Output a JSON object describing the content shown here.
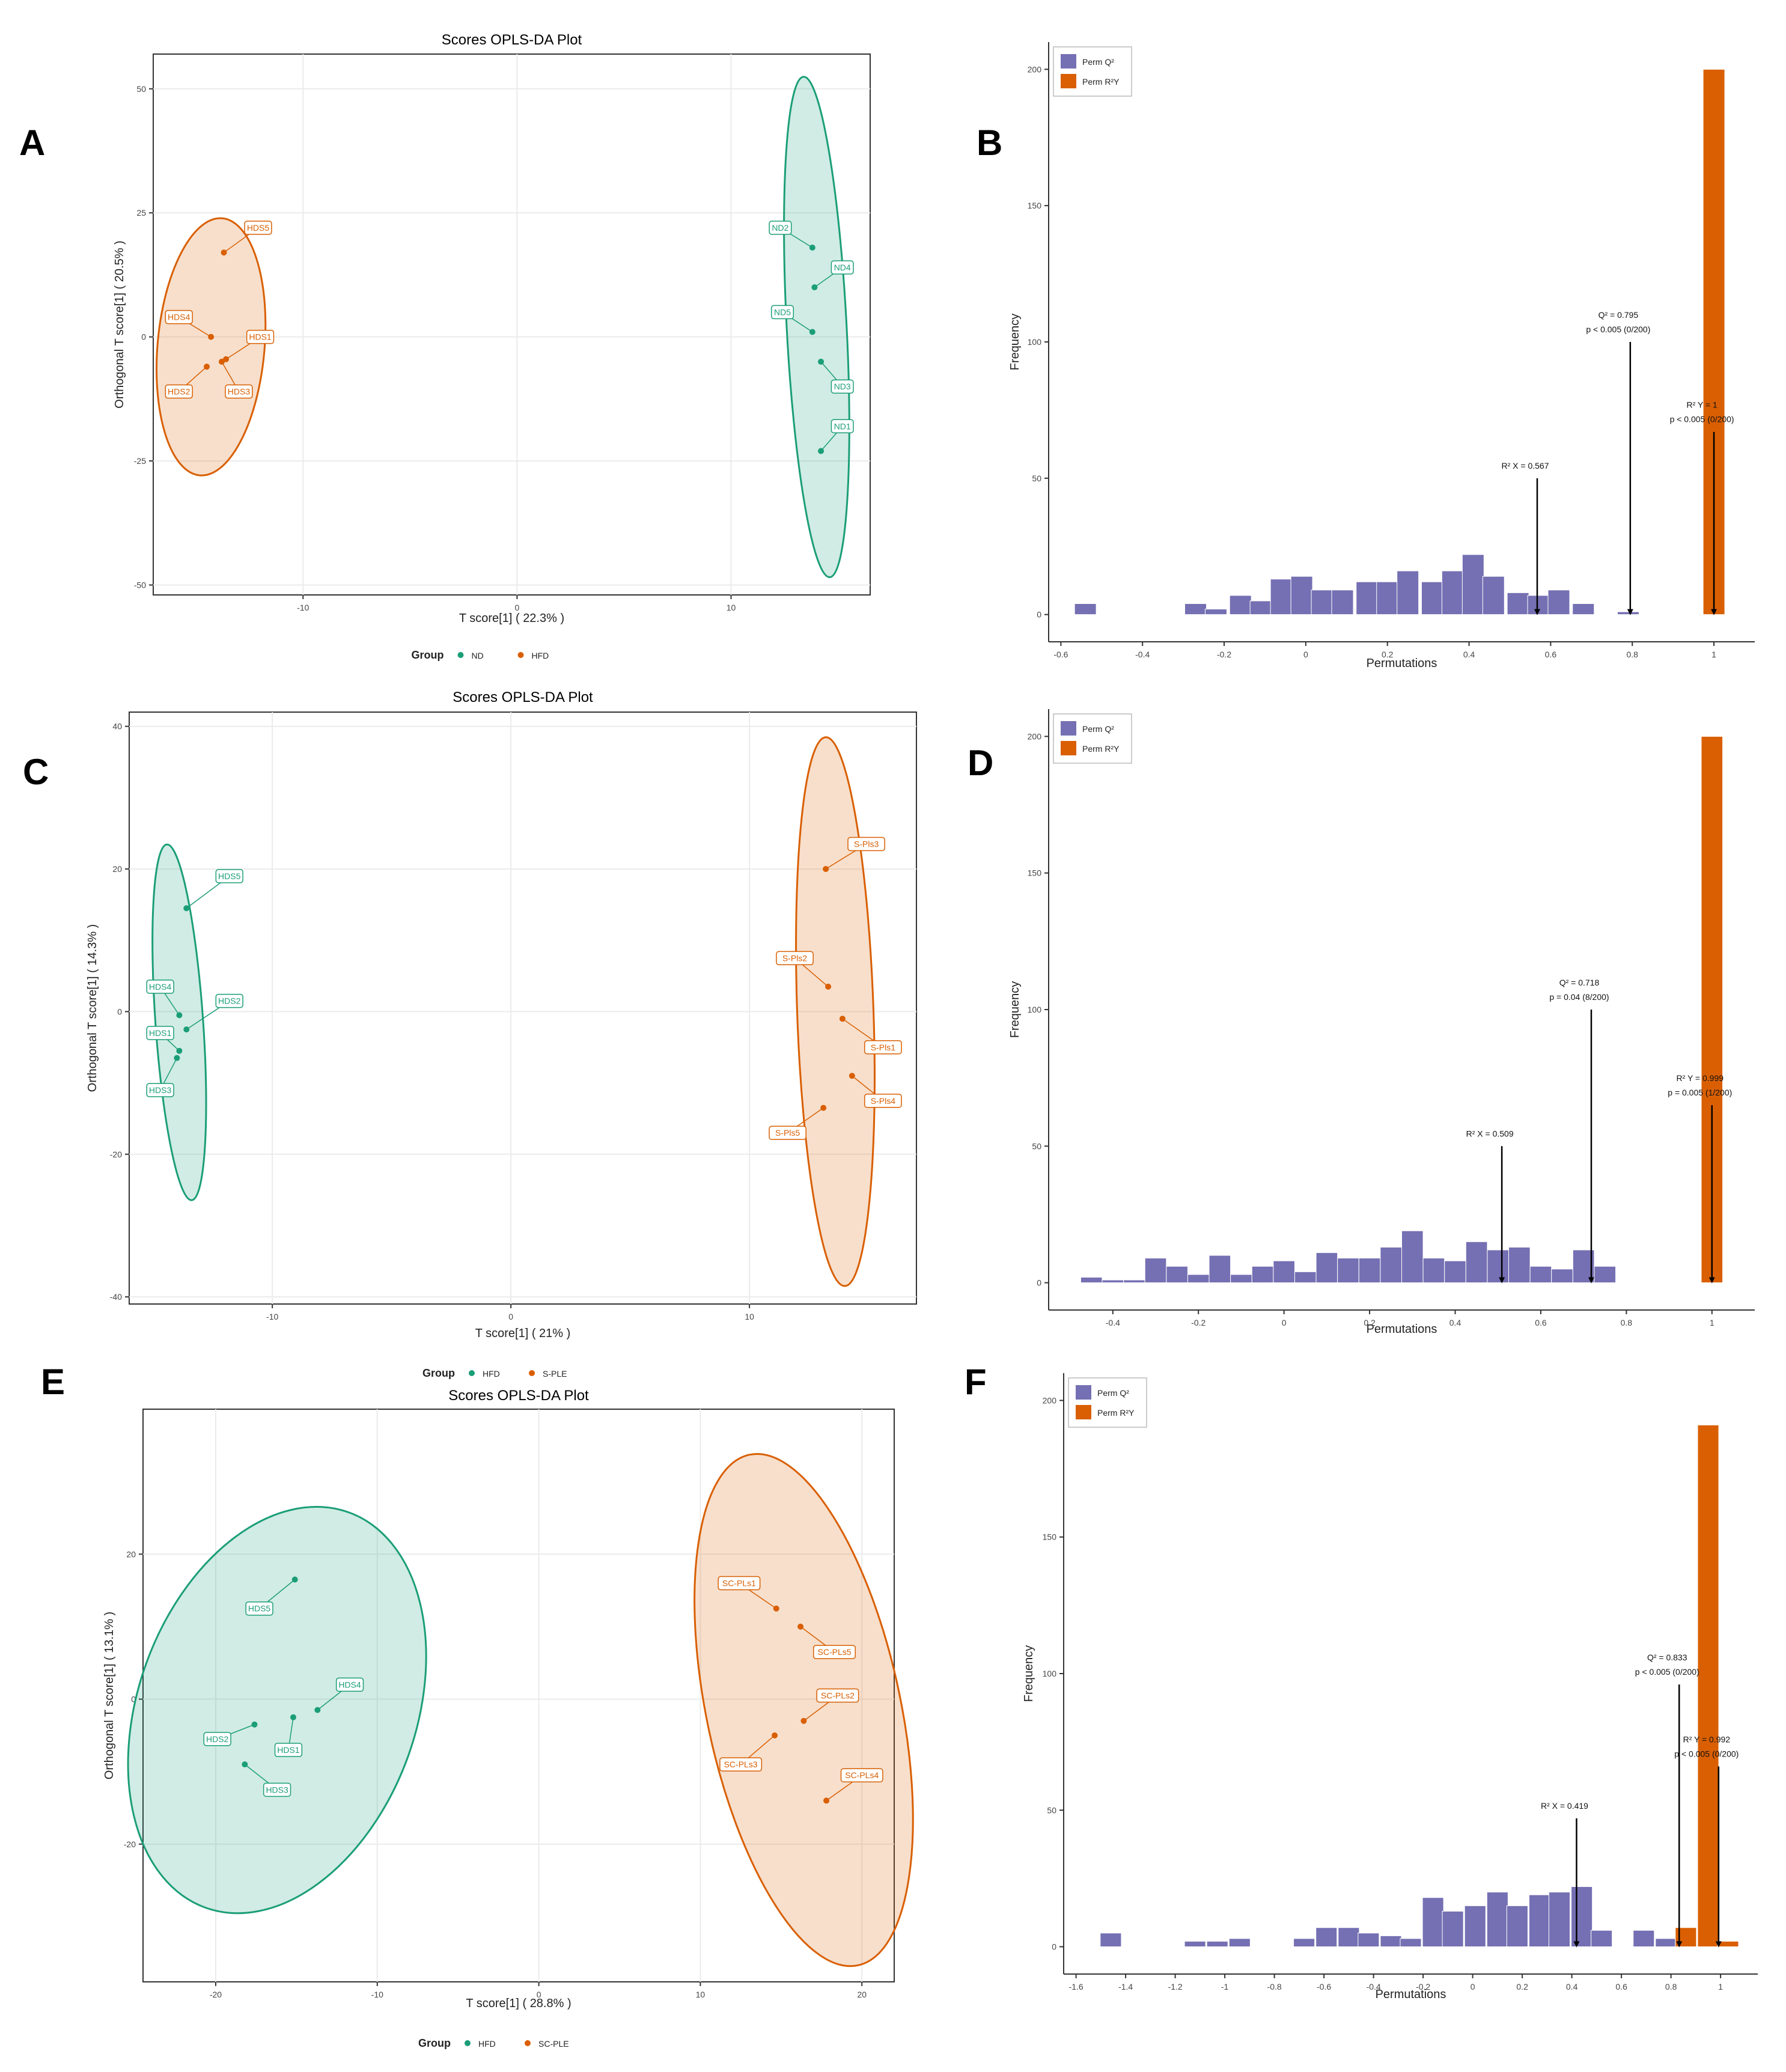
{
  "colors": {
    "teal": "#1b9e77",
    "orange": "#d95f02",
    "purple": "#7570b3",
    "bar_orange": "#d95f02",
    "grid": "#ebebeb"
  },
  "panels": {
    "A": "A",
    "B": "B",
    "C": "C",
    "D": "D",
    "E": "E",
    "F": "F"
  },
  "chart_data": [
    {
      "id": "A",
      "type": "scatter",
      "title": "Scores OPLS-DA Plot",
      "xlabel": "T score[1] ( 22.3% )",
      "ylabel": "Orthogonal T score[1] ( 20.5% )",
      "xlim": [
        -17,
        16.5
      ],
      "ylim": [
        -52,
        57
      ],
      "xticks": [
        -10,
        0,
        10
      ],
      "yticks": [
        -50,
        -25,
        0,
        25,
        50
      ],
      "legend_title": "Group",
      "legend": [
        "ND",
        "HFD"
      ],
      "groups": [
        {
          "name": "ND",
          "color": "teal",
          "ellipse": {
            "cx": 14.0,
            "cy": 2.0,
            "rx": 1.4,
            "ry": 50.5,
            "angle": -3
          },
          "points": [
            {
              "label": "ND2",
              "x": 13.8,
              "y": 18,
              "lx": 12.3,
              "ly": 22
            },
            {
              "label": "ND4",
              "x": 13.9,
              "y": 10,
              "lx": 15.2,
              "ly": 14
            },
            {
              "label": "ND5",
              "x": 13.8,
              "y": 1,
              "lx": 12.4,
              "ly": 5
            },
            {
              "label": "ND3",
              "x": 14.2,
              "y": -5,
              "lx": 15.2,
              "ly": -10
            },
            {
              "label": "ND1",
              "x": 14.2,
              "y": -23,
              "lx": 15.2,
              "ly": -18
            }
          ]
        },
        {
          "name": "HFD",
          "color": "orange",
          "ellipse": {
            "cx": -14.3,
            "cy": -2.0,
            "rx": 2.5,
            "ry": 26.0,
            "angle": 5
          },
          "points": [
            {
              "label": "HDS5",
              "x": -13.7,
              "y": 17,
              "lx": -12.1,
              "ly": 22
            },
            {
              "label": "HDS4",
              "x": -14.3,
              "y": 0,
              "lx": -15.8,
              "ly": 4
            },
            {
              "label": "HDS1",
              "x": -13.6,
              "y": -4.5,
              "lx": -12.0,
              "ly": 0
            },
            {
              "label": "HDS2",
              "x": -14.5,
              "y": -6,
              "lx": -15.8,
              "ly": -11
            },
            {
              "label": "HDS3",
              "x": -13.8,
              "y": -5,
              "lx": -13.0,
              "ly": -11
            }
          ]
        }
      ]
    },
    {
      "id": "B",
      "type": "bar",
      "xlabel": "Permutations",
      "ylabel": "Frequency",
      "xlim": [
        -0.63,
        1.1
      ],
      "ylim": [
        -10,
        210
      ],
      "xticks": [
        -0.6,
        -0.4,
        -0.2,
        0.0,
        0.2,
        0.4,
        0.6,
        0.8,
        1.0
      ],
      "yticks": [
        0,
        50,
        100,
        150,
        200
      ],
      "bin_width": 0.053,
      "legend": [
        "Perm Q²",
        "Perm R²Y"
      ],
      "q2_bins": [
        [
          -0.54,
          4
        ],
        [
          -0.27,
          4
        ],
        [
          -0.22,
          2
        ],
        [
          -0.16,
          7
        ],
        [
          -0.11,
          5
        ],
        [
          -0.06,
          13
        ],
        [
          -0.01,
          14
        ],
        [
          0.04,
          9
        ],
        [
          0.09,
          9
        ],
        [
          0.15,
          12
        ],
        [
          0.2,
          12
        ],
        [
          0.25,
          16
        ],
        [
          0.31,
          12
        ],
        [
          0.36,
          16
        ],
        [
          0.41,
          22
        ],
        [
          0.46,
          14
        ],
        [
          0.52,
          8
        ],
        [
          0.57,
          7
        ],
        [
          0.62,
          9
        ],
        [
          0.68,
          4
        ],
        [
          0.79,
          1
        ]
      ],
      "r2y_bins": [
        [
          1.0,
          200
        ]
      ],
      "arrows": [
        {
          "x": 0.567,
          "text": [
            "R² X = 0.567"
          ],
          "top": 50
        },
        {
          "x": 0.795,
          "text": [
            "Q² = 0.795",
            "p < 0.005 (0/200)"
          ],
          "top": 100
        },
        {
          "x": 1.0,
          "text": [
            "R² Y = 1",
            "p < 0.005 (0/200)"
          ],
          "top": 67
        }
      ]
    },
    {
      "id": "C",
      "type": "scatter",
      "title": "Scores OPLS-DA Plot",
      "xlabel": "T score[1] ( 21% )",
      "ylabel": "Orthogonal T score[1] ( 14.3% )",
      "xlim": [
        -16,
        17
      ],
      "ylim": [
        -41,
        42
      ],
      "xticks": [
        -10,
        0,
        10
      ],
      "yticks": [
        -40,
        -20,
        0,
        20,
        40
      ],
      "legend_title": "Group",
      "legend": [
        "HFD",
        "S-PLE"
      ],
      "groups": [
        {
          "name": "HFD",
          "color": "teal",
          "ellipse": {
            "cx": -13.9,
            "cy": -1.5,
            "rx": 1.0,
            "ry": 25.0,
            "angle": -4
          },
          "points": [
            {
              "label": "HDS5",
              "x": -13.6,
              "y": 14.5,
              "lx": -11.8,
              "ly": 19
            },
            {
              "label": "HDS4",
              "x": -13.9,
              "y": -0.5,
              "lx": -14.7,
              "ly": 3.5
            },
            {
              "label": "HDS2",
              "x": -13.6,
              "y": -2.5,
              "lx": -11.8,
              "ly": 1.5
            },
            {
              "label": "HDS1",
              "x": -13.9,
              "y": -5.5,
              "lx": -14.7,
              "ly": -3
            },
            {
              "label": "HDS3",
              "x": -14.0,
              "y": -6.5,
              "lx": -14.7,
              "ly": -11
            }
          ]
        },
        {
          "name": "S-PLE",
          "color": "orange",
          "ellipse": {
            "cx": 13.6,
            "cy": 0.0,
            "rx": 1.6,
            "ry": 38.5,
            "angle": -2
          },
          "points": [
            {
              "label": "S-Pls3",
              "x": 13.2,
              "y": 20,
              "lx": 14.9,
              "ly": 23.5
            },
            {
              "label": "S-Pls2",
              "x": 13.3,
              "y": 3.5,
              "lx": 11.9,
              "ly": 7.5
            },
            {
              "label": "S-Pls1",
              "x": 13.9,
              "y": -1,
              "lx": 15.6,
              "ly": -5
            },
            {
              "label": "S-Pls4",
              "x": 14.3,
              "y": -9,
              "lx": 15.6,
              "ly": -12.5
            },
            {
              "label": "S-Pls5",
              "x": 13.1,
              "y": -13.5,
              "lx": 11.6,
              "ly": -17
            }
          ]
        }
      ]
    },
    {
      "id": "D",
      "type": "bar",
      "xlabel": "Permutations",
      "ylabel": "Frequency",
      "xlim": [
        -0.55,
        1.1
      ],
      "ylim": [
        -10,
        210
      ],
      "xticks": [
        -0.4,
        -0.2,
        0.0,
        0.2,
        0.4,
        0.6,
        0.8,
        1.0
      ],
      "yticks": [
        0,
        50,
        100,
        150,
        200
      ],
      "bin_width": 0.05,
      "legend": [
        "Perm Q²",
        "Perm R²Y"
      ],
      "q2_bins": [
        [
          -0.45,
          2
        ],
        [
          -0.4,
          1
        ],
        [
          -0.35,
          1
        ],
        [
          -0.3,
          9
        ],
        [
          -0.25,
          6
        ],
        [
          -0.2,
          3
        ],
        [
          -0.15,
          10
        ],
        [
          -0.1,
          3
        ],
        [
          -0.05,
          6
        ],
        [
          0.0,
          8
        ],
        [
          0.05,
          4
        ],
        [
          0.1,
          11
        ],
        [
          0.15,
          9
        ],
        [
          0.2,
          9
        ],
        [
          0.25,
          13
        ],
        [
          0.3,
          19
        ],
        [
          0.35,
          9
        ],
        [
          0.4,
          8
        ],
        [
          0.45,
          15
        ],
        [
          0.5,
          12
        ],
        [
          0.55,
          13
        ],
        [
          0.6,
          6
        ],
        [
          0.65,
          5
        ],
        [
          0.7,
          12
        ],
        [
          0.75,
          6
        ]
      ],
      "r2y_bins": [
        [
          1.0,
          200
        ]
      ],
      "arrows": [
        {
          "x": 0.509,
          "text": [
            "R² X = 0.509"
          ],
          "top": 50
        },
        {
          "x": 0.718,
          "text": [
            "Q² = 0.718",
            "p = 0.04 (8/200)"
          ],
          "top": 100
        },
        {
          "x": 1.0,
          "text": [
            "R² Y = 0.999",
            "p = 0.005 (1/200)"
          ],
          "top": 65
        }
      ]
    },
    {
      "id": "E",
      "type": "scatter",
      "title": "Scores OPLS-DA Plot",
      "xlabel": "T score[1] ( 28.8% )",
      "ylabel": "Orthogonal T score[1] ( 13.1% )",
      "xlim": [
        -24.5,
        22
      ],
      "ylim": [
        -39,
        40
      ],
      "xticks": [
        -20,
        -10,
        0,
        10,
        20
      ],
      "yticks": [
        -20,
        0,
        20
      ],
      "legend_title": "Group",
      "legend": [
        "HFD",
        "SC-PLE"
      ],
      "groups": [
        {
          "name": "HFD",
          "color": "teal",
          "ellipse": {
            "cx": -16.2,
            "cy": -1.5,
            "rx": 8.6,
            "ry": 29.0,
            "angle": 20
          },
          "points": [
            {
              "label": "HDS5",
              "x": -15.1,
              "y": 16.5,
              "lx": -17.3,
              "ly": 12.5
            },
            {
              "label": "HDS4",
              "x": -13.7,
              "y": -1.5,
              "lx": -11.7,
              "ly": 2
            },
            {
              "label": "HDS1",
              "x": -15.2,
              "y": -2.5,
              "lx": -15.5,
              "ly": -7
            },
            {
              "label": "HDS2",
              "x": -17.6,
              "y": -3.5,
              "lx": -19.9,
              "ly": -5.5
            },
            {
              "label": "HDS3",
              "x": -18.2,
              "y": -9,
              "lx": -16.2,
              "ly": -12.5
            }
          ]
        },
        {
          "name": "SC-PLE",
          "color": "orange",
          "ellipse": {
            "cx": 16.4,
            "cy": -1.5,
            "rx": 6.0,
            "ry": 36.0,
            "angle": -12
          },
          "points": [
            {
              "label": "SC-PLs1",
              "x": 14.7,
              "y": 12.5,
              "lx": 12.4,
              "ly": 16
            },
            {
              "label": "SC-PLs5",
              "x": 16.2,
              "y": 10,
              "lx": 18.3,
              "ly": 6.5
            },
            {
              "label": "SC-PLs2",
              "x": 16.4,
              "y": -3,
              "lx": 18.5,
              "ly": 0.5
            },
            {
              "label": "SC-PLs3",
              "x": 14.6,
              "y": -5,
              "lx": 12.5,
              "ly": -9
            },
            {
              "label": "SC-PLs4",
              "x": 17.8,
              "y": -14,
              "lx": 20.0,
              "ly": -10.5
            }
          ]
        }
      ]
    },
    {
      "id": "F",
      "type": "bar",
      "xlabel": "Permutations",
      "ylabel": "Frequency",
      "xlim": [
        -1.65,
        1.15
      ],
      "ylim": [
        -10,
        210
      ],
      "xticks": [
        -1.6,
        -1.4,
        -1.2,
        -1.0,
        -0.8,
        -0.6,
        -0.4,
        -0.2,
        0.0,
        0.2,
        0.4,
        0.6,
        0.8,
        1.0
      ],
      "yticks": [
        0,
        50,
        100,
        150,
        200
      ],
      "bin_width": 0.085,
      "legend": [
        "Perm Q²",
        "Perm R²Y"
      ],
      "q2_bins": [
        [
          -1.46,
          5
        ],
        [
          -1.12,
          2
        ],
        [
          -1.03,
          2
        ],
        [
          -0.94,
          3
        ],
        [
          -0.68,
          3
        ],
        [
          -0.59,
          7
        ],
        [
          -0.5,
          7
        ],
        [
          -0.42,
          5
        ],
        [
          -0.33,
          4
        ],
        [
          -0.25,
          3
        ],
        [
          -0.16,
          18
        ],
        [
          -0.08,
          13
        ],
        [
          0.01,
          15
        ],
        [
          0.1,
          20
        ],
        [
          0.18,
          15
        ],
        [
          0.27,
          19
        ],
        [
          0.35,
          20
        ],
        [
          0.44,
          22
        ],
        [
          0.52,
          6
        ],
        [
          0.69,
          6
        ],
        [
          0.78,
          3
        ],
        [
          0.86,
          7
        ]
      ],
      "r2y_bins": [
        [
          0.86,
          7
        ],
        [
          0.95,
          191
        ],
        [
          1.03,
          2
        ]
      ],
      "arrows": [
        {
          "x": 0.419,
          "text": [
            "R² X = 0.419"
          ],
          "top": 47
        },
        {
          "x": 0.833,
          "text": [
            "Q² = 0.833",
            "p < 0.005 (0/200)"
          ],
          "top": 96
        },
        {
          "x": 0.992,
          "text": [
            "R² Y = 0.992",
            "p < 0.005 (0/200)"
          ],
          "top": 66
        }
      ]
    }
  ]
}
